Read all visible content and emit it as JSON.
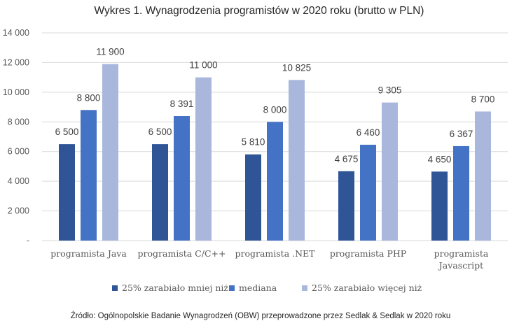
{
  "chart_data": {
    "type": "bar",
    "title": "Wykres 1. Wynagrodzenia programistów w 2020 roku (brutto w PLN)",
    "categories": [
      [
        "programista Java"
      ],
      [
        "programista C/C++"
      ],
      [
        "programista .NET"
      ],
      [
        "programista PHP"
      ],
      [
        "programista",
        "Javascript"
      ]
    ],
    "series": [
      {
        "name": "25% zarabiało mniej niż",
        "color": "#2f5597",
        "values": [
          6500,
          6500,
          5810,
          4675,
          4650
        ],
        "labels": [
          "6 500",
          "6 500",
          "5 810",
          "4 675",
          "4 650"
        ]
      },
      {
        "name": "mediana",
        "color": "#4472c4",
        "values": [
          8800,
          8391,
          8000,
          6460,
          6367
        ],
        "labels": [
          "8 800",
          "8 391",
          "8 000",
          "6 460",
          "6 367"
        ]
      },
      {
        "name": "25% zarabiało więcej niż",
        "color": "#a9b7dc",
        "values": [
          11900,
          11000,
          10825,
          9305,
          8700
        ],
        "labels": [
          "11 900",
          "11 000",
          "10 825",
          "9 305",
          "8 700"
        ]
      }
    ],
    "ylim": [
      0,
      14000
    ],
    "yticks": [
      0,
      2000,
      4000,
      6000,
      8000,
      10000,
      12000,
      14000
    ],
    "ytick_labels": [
      "-",
      "2 000",
      "4 000",
      "6 000",
      "8 000",
      "10 000",
      "12 000",
      "14 000"
    ],
    "xlabel": "",
    "ylabel": "",
    "grid": true,
    "legend_position": "bottom"
  },
  "source_note": "Źródło: Ogólnopolskie Badanie Wynagrodzeń (OBW) przeprowadzone przez Sedlak & Sedlak w 2020 roku"
}
